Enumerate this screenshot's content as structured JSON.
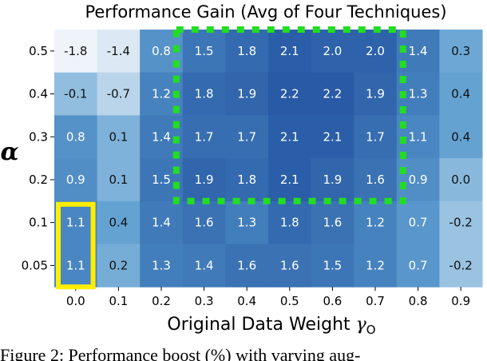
{
  "chart_data": {
    "type": "heatmap",
    "title": "Performance Gain (Avg of Four Techniques)",
    "xlabel": "Original Data Weight",
    "xlabel_symbol": "γ",
    "xlabel_subscript": "O",
    "ylabel": "α",
    "x": [
      "0.0",
      "0.1",
      "0.2",
      "0.3",
      "0.4",
      "0.5",
      "0.6",
      "0.7",
      "0.8",
      "0.9"
    ],
    "y": [
      "0.5",
      "0.4",
      "0.3",
      "0.2",
      "0.1",
      "0.05"
    ],
    "values": [
      [
        -1.8,
        -1.4,
        0.8,
        1.5,
        1.8,
        2.1,
        2.0,
        2.0,
        1.4,
        0.3
      ],
      [
        -0.1,
        -0.7,
        1.2,
        1.8,
        1.9,
        2.2,
        2.2,
        1.9,
        1.3,
        0.4
      ],
      [
        0.8,
        0.1,
        1.4,
        1.7,
        1.7,
        2.1,
        2.1,
        1.7,
        1.1,
        0.4
      ],
      [
        0.9,
        0.1,
        1.5,
        1.9,
        1.8,
        2.1,
        1.9,
        1.6,
        0.9,
        0.0
      ],
      [
        1.1,
        0.4,
        1.4,
        1.6,
        1.3,
        1.8,
        1.6,
        1.2,
        0.7,
        -0.2
      ],
      [
        1.1,
        0.2,
        1.3,
        1.4,
        1.6,
        1.6,
        1.5,
        1.2,
        0.7,
        -0.2
      ]
    ],
    "colormap": "Blues",
    "value_range": [
      -1.8,
      2.2
    ],
    "highlights": [
      {
        "color": "#ffee00",
        "style": "solid",
        "x_range": [
          "0.0",
          "0.0"
        ],
        "y_range": [
          "0.1",
          "0.05"
        ]
      },
      {
        "color": "#22dd22",
        "style": "dotted",
        "x_range": [
          "0.3",
          "0.7"
        ],
        "y_range": [
          "0.5",
          "0.2"
        ]
      }
    ]
  },
  "caption": "Figure 2:  Performance boost (%) with varying aug-"
}
